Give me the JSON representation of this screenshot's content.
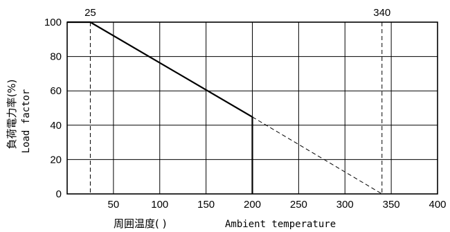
{
  "chart_data": {
    "type": "line",
    "title": "",
    "xlabel": "周囲温度(   )",
    "xlabel_en": "Ambient temperature",
    "ylabel": "負荷電力率(%)",
    "ylabel_en": "Load factor",
    "xlim": [
      0,
      400
    ],
    "ylim": [
      0,
      100
    ],
    "x_ticks": [
      50,
      100,
      150,
      200,
      250,
      300,
      350,
      400
    ],
    "y_ticks": [
      0,
      20,
      40,
      60,
      80,
      100
    ],
    "grid": true,
    "series": [
      {
        "style": "solid",
        "points": [
          [
            0,
            100
          ],
          [
            25,
            100
          ],
          [
            200,
            44.8
          ],
          [
            200,
            0
          ]
        ]
      },
      {
        "style": "dashed",
        "points": [
          [
            200,
            44.8
          ],
          [
            340,
            0
          ]
        ]
      }
    ],
    "reference_lines": [
      {
        "x": 25,
        "label": "25",
        "style": "dashed"
      },
      {
        "x": 340,
        "label": "340",
        "style": "dashed"
      }
    ]
  }
}
